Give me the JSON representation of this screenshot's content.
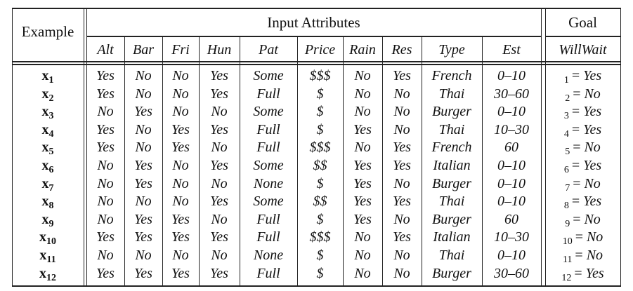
{
  "headers": {
    "example": "Example",
    "input_attributes": "Input Attributes",
    "goal": "Goal",
    "goal_attribute": "WillWait",
    "attributes": [
      "Alt",
      "Bar",
      "Fri",
      "Hun",
      "Pat",
      "Price",
      "Rain",
      "Res",
      "Type",
      "Est"
    ]
  },
  "rows": [
    {
      "x": "x",
      "n": "1",
      "values": [
        "Yes",
        "No",
        "No",
        "Yes",
        "Some",
        "$$$",
        "No",
        "Yes",
        "French",
        "0–10"
      ],
      "goal_index": "1",
      "goal": "Yes"
    },
    {
      "x": "x",
      "n": "2",
      "values": [
        "Yes",
        "No",
        "No",
        "Yes",
        "Full",
        "$",
        "No",
        "No",
        "Thai",
        "30–60"
      ],
      "goal_index": "2",
      "goal": "No"
    },
    {
      "x": "x",
      "n": "3",
      "values": [
        "No",
        "Yes",
        "No",
        "No",
        "Some",
        "$",
        "No",
        "No",
        "Burger",
        "0–10"
      ],
      "goal_index": "3",
      "goal": "Yes"
    },
    {
      "x": "x",
      "n": "4",
      "values": [
        "Yes",
        "No",
        "Yes",
        "Yes",
        "Full",
        "$",
        "Yes",
        "No",
        "Thai",
        "10–30"
      ],
      "goal_index": "4",
      "goal": "Yes"
    },
    {
      "x": "x",
      "n": "5",
      "values": [
        "Yes",
        "No",
        "Yes",
        "No",
        "Full",
        "$$$",
        "No",
        "Yes",
        "French",
        "60"
      ],
      "goal_index": "5",
      "goal": "No"
    },
    {
      "x": "x",
      "n": "6",
      "values": [
        "No",
        "Yes",
        "No",
        "Yes",
        "Some",
        "$$",
        "Yes",
        "Yes",
        "Italian",
        "0–10"
      ],
      "goal_index": "6",
      "goal": "Yes"
    },
    {
      "x": "x",
      "n": "7",
      "values": [
        "No",
        "Yes",
        "No",
        "No",
        "None",
        "$",
        "Yes",
        "No",
        "Burger",
        "0–10"
      ],
      "goal_index": "7",
      "goal": "No"
    },
    {
      "x": "x",
      "n": "8",
      "values": [
        "No",
        "No",
        "No",
        "Yes",
        "Some",
        "$$",
        "Yes",
        "Yes",
        "Thai",
        "0–10"
      ],
      "goal_index": "8",
      "goal": "Yes"
    },
    {
      "x": "x",
      "n": "9",
      "values": [
        "No",
        "Yes",
        "Yes",
        "No",
        "Full",
        "$",
        "Yes",
        "No",
        "Burger",
        "60"
      ],
      "goal_index": "9",
      "goal": "No"
    },
    {
      "x": "x",
      "n": "10",
      "values": [
        "Yes",
        "Yes",
        "Yes",
        "Yes",
        "Full",
        "$$$",
        "No",
        "Yes",
        "Italian",
        "10–30"
      ],
      "goal_index": "10",
      "goal": "No"
    },
    {
      "x": "x",
      "n": "11",
      "values": [
        "No",
        "No",
        "No",
        "No",
        "None",
        "$",
        "No",
        "No",
        "Thai",
        "0–10"
      ],
      "goal_index": "11",
      "goal": "No"
    },
    {
      "x": "x",
      "n": "12",
      "values": [
        "Yes",
        "Yes",
        "Yes",
        "Yes",
        "Full",
        "$",
        "No",
        "No",
        "Burger",
        "30–60"
      ],
      "goal_index": "12",
      "goal": "Yes"
    }
  ]
}
